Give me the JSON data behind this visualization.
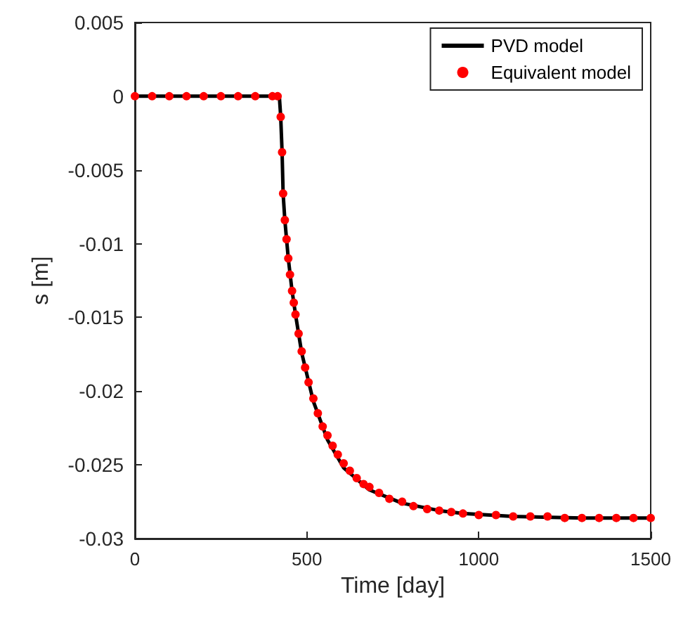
{
  "chart_data": {
    "type": "line",
    "xlabel": "Time [day]",
    "ylabel": "s [m]",
    "xlim": [
      0,
      1500
    ],
    "ylim": [
      -0.03,
      0.005
    ],
    "xticks": [
      0,
      500,
      1000,
      1500
    ],
    "yticks": [
      -0.03,
      -0.025,
      -0.02,
      -0.015,
      -0.01,
      -0.005,
      0,
      0.005
    ],
    "grid": false,
    "legend": "top right",
    "series": [
      {
        "name": "PVD model",
        "color": "#000000",
        "marker": "none",
        "line_style": "solid",
        "x": [
          0,
          420,
          424,
          428,
          431,
          436,
          446,
          457,
          467,
          485,
          519,
          560,
          607,
          682,
          777,
          885,
          954,
          1100,
          1300,
          1500
        ],
        "values": [
          0,
          0,
          -0.0014,
          -0.0038,
          -0.0066,
          -0.0084,
          -0.011,
          -0.0132,
          -0.0148,
          -0.0174,
          -0.0207,
          -0.0233,
          -0.0252,
          -0.0267,
          -0.0276,
          -0.0281,
          -0.0283,
          -0.0285,
          -0.0286,
          -0.0286
        ]
      },
      {
        "name": "Equivalent model",
        "type": "scatter",
        "color": "#ff0000",
        "marker": "circle",
        "x": [
          0,
          50,
          100,
          150,
          200,
          250,
          300,
          350,
          400,
          415,
          424,
          428,
          431,
          436,
          441,
          446,
          451,
          457,
          462,
          467,
          476,
          485,
          495,
          505,
          519,
          532,
          546,
          560,
          575,
          590,
          607,
          625,
          645,
          665,
          682,
          710,
          740,
          777,
          810,
          850,
          885,
          920,
          954,
          1000,
          1050,
          1100,
          1150,
          1200,
          1250,
          1300,
          1350,
          1400,
          1450,
          1500
        ],
        "values": [
          0,
          0,
          0,
          0,
          0,
          0,
          0,
          0,
          0,
          0,
          -0.0014,
          -0.0038,
          -0.0066,
          -0.0084,
          -0.0097,
          -0.011,
          -0.0121,
          -0.0132,
          -0.014,
          -0.0148,
          -0.0161,
          -0.0173,
          -0.0184,
          -0.0194,
          -0.0205,
          -0.0215,
          -0.0224,
          -0.023,
          -0.0237,
          -0.0243,
          -0.0249,
          -0.0254,
          -0.0259,
          -0.0263,
          -0.0265,
          -0.0269,
          -0.0273,
          -0.0275,
          -0.0278,
          -0.028,
          -0.0281,
          -0.0282,
          -0.0283,
          -0.0284,
          -0.0284,
          -0.0285,
          -0.0285,
          -0.0285,
          -0.0286,
          -0.0286,
          -0.0286,
          -0.0286,
          -0.0286,
          -0.0286
        ]
      }
    ]
  }
}
